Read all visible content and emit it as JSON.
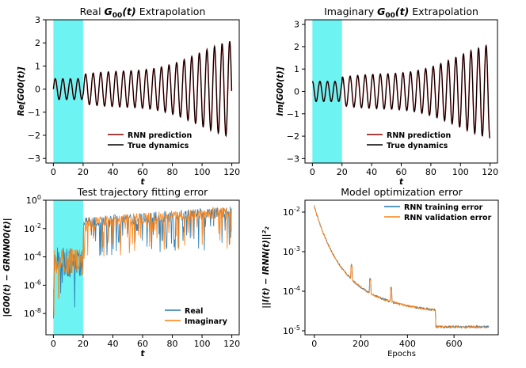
{
  "chart_data": [
    {
      "type": "line",
      "title_prefix": "Real ",
      "title_math": "G",
      "title_sub": "00",
      "title_suffix": "(t)",
      "title_tail": " Extrapolation",
      "xlabel": "t",
      "ylabel": "Re[G00(t)]",
      "xlim": [
        -5,
        125
      ],
      "ylim": [
        -3.2,
        3.0
      ],
      "xticks": [
        0,
        20,
        40,
        60,
        80,
        100,
        120
      ],
      "yticks": [
        -3,
        -2,
        -1,
        0,
        1,
        2,
        3
      ],
      "highlight_span": [
        0,
        20
      ],
      "series": [
        {
          "name": "RNN prediction",
          "color": "#8b0000",
          "kind": "osc",
          "phase": 0.0,
          "growth": 0.012,
          "amp0": 0.45
        },
        {
          "name": "True dynamics",
          "color": "#000000",
          "kind": "osc",
          "phase": 0.0,
          "growth": 0.012,
          "amp0": 0.45
        }
      ],
      "legend_position": "lower-center"
    },
    {
      "type": "line",
      "title_prefix": "Imaginary ",
      "title_math": "G",
      "title_sub": "00",
      "title_suffix": "(t)",
      "title_tail": " Extrapolation",
      "xlabel": "t",
      "ylabel": "Im[G00(t)]",
      "xlim": [
        -5,
        125
      ],
      "ylim": [
        -3.2,
        3.2
      ],
      "xticks": [
        0,
        20,
        40,
        60,
        80,
        100,
        120
      ],
      "yticks": [
        -3,
        -2,
        -1,
        0,
        1,
        2,
        3
      ],
      "highlight_span": [
        0,
        20
      ],
      "series": [
        {
          "name": "RNN prediction",
          "color": "#8b0000",
          "kind": "osc",
          "phase": 1.5708,
          "growth": 0.012,
          "amp0": 0.45
        },
        {
          "name": "True dynamics",
          "color": "#000000",
          "kind": "osc",
          "phase": 1.5708,
          "growth": 0.012,
          "amp0": 0.45
        }
      ],
      "legend_position": "lower-center"
    },
    {
      "type": "line",
      "title": "Test trajectory fitting error",
      "xlabel": "t",
      "ylabel": "|G00(t) − GRNN00(t)|",
      "xlim": [
        -5,
        125
      ],
      "ylim_log10": [
        -9.5,
        0
      ],
      "yscale": "log",
      "xticks": [
        0,
        20,
        40,
        60,
        80,
        100,
        120
      ],
      "yticks_exp": [
        0,
        -2,
        -4,
        -6,
        -8
      ],
      "highlight_span": [
        0,
        20
      ],
      "series": [
        {
          "name": "Real",
          "color": "#1f77b4",
          "kind": "err",
          "seed": 3
        },
        {
          "name": "Imaginary",
          "color": "#ff7f0e",
          "kind": "err",
          "seed": 11
        }
      ],
      "legend_position": "lower-right"
    },
    {
      "type": "line",
      "title": "Model optimization error",
      "xlabel": "Epochs",
      "ylabel": "||I(t) − IRNN(t)||²₂",
      "xlim": [
        -40,
        790
      ],
      "ylim_log10": [
        -5.1,
        -1.7
      ],
      "yscale": "log",
      "xticks": [
        0,
        200,
        400,
        600
      ],
      "yticks_exp": [
        -2,
        -3,
        -4,
        -5
      ],
      "series": [
        {
          "name": "RNN training error",
          "color": "#1f77b4",
          "kind": "loss",
          "seed": 5
        },
        {
          "name": "RNN validation error",
          "color": "#ff7f0e",
          "kind": "loss",
          "seed": 7
        }
      ],
      "legend_position": "top-right"
    }
  ]
}
